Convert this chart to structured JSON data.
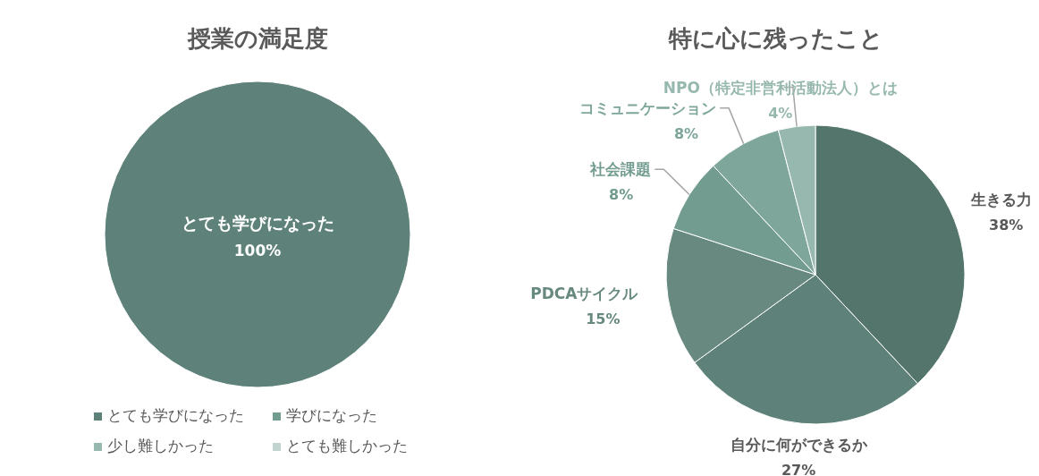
{
  "chart_data": [
    {
      "type": "pie",
      "title": "授業の満足度",
      "categories": [
        "とても学びになった",
        "学びになった",
        "少し難しかった",
        "とても難しかった"
      ],
      "values": [
        100,
        0,
        0,
        0
      ],
      "colors": [
        "#5e8279",
        "#729c90",
        "#97b8ae",
        "#c2d4cf"
      ],
      "value_labels": [
        "100%",
        null,
        null,
        null
      ],
      "legend": "bottom"
    },
    {
      "type": "pie",
      "title": "特に心に残ったこと",
      "categories": [
        "生きる力",
        "自分に何ができるか",
        "PDCAサイクル",
        "社会課題",
        "コミュニケーション",
        "NPO（特定非営利活動法人）とは"
      ],
      "values": [
        38,
        27,
        15,
        8,
        8,
        4
      ],
      "colors": [
        "#54756b",
        "#5e8279",
        "#67897f",
        "#729c90",
        "#7ea69b",
        "#97b8ae"
      ],
      "value_labels": [
        "38%",
        "27%",
        "15%",
        "8%",
        "8%",
        "4%"
      ],
      "legend": false
    }
  ]
}
